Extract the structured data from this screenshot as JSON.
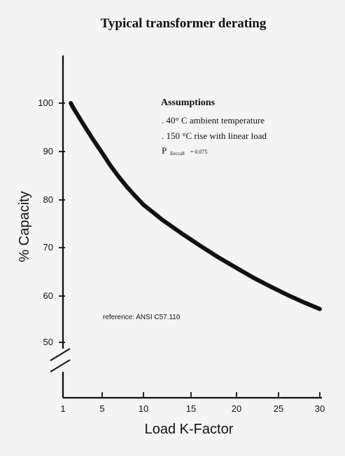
{
  "chart_data": {
    "type": "line",
    "title": "Typical transformer derating",
    "xlabel": "Load K-Factor",
    "ylabel": "% Capacity",
    "x_ticks": [
      1,
      5,
      10,
      15,
      20,
      25,
      30
    ],
    "y_ticks": [
      50,
      60,
      70,
      80,
      90,
      100
    ],
    "xlim": [
      1,
      30
    ],
    "ylim": [
      50,
      100
    ],
    "series": [
      {
        "x": [
          1.8,
          2,
          3,
          4,
          5,
          6,
          7,
          8,
          9,
          10,
          12,
          14,
          16,
          18,
          20,
          22,
          24,
          26,
          28,
          30
        ],
        "y": [
          100,
          99.2,
          95.9,
          92.7,
          89.7,
          87.1,
          84.8,
          82.7,
          80.8,
          79.0,
          75.8,
          73.0,
          70.4,
          68.0,
          65.8,
          63.8,
          62.0,
          60.3,
          58.7,
          57.2
        ],
        "color": "#111111"
      }
    ],
    "assumptions": {
      "heading": "Assumptions",
      "lines": [
        ". 40° C ambient temperature",
        ". 150 °C rise with  linear load"
      ],
      "formula_main": "P",
      "formula_sub": "Eeccall",
      "formula_value": "= 0.075"
    },
    "reference": "reference: ANSI C57.110"
  }
}
